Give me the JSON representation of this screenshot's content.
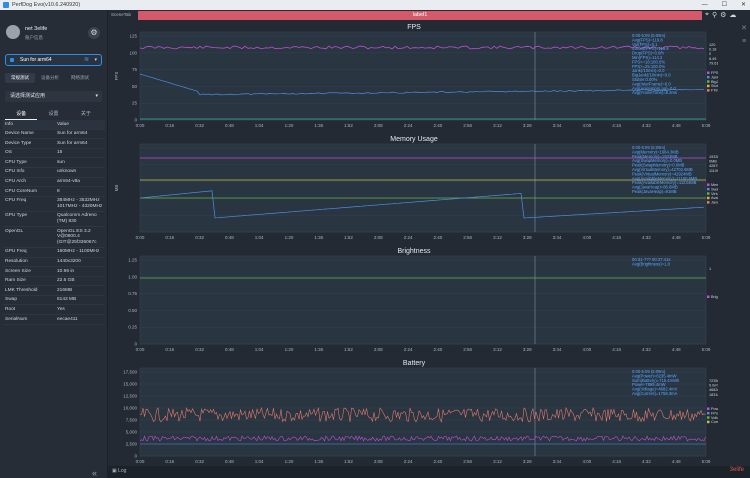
{
  "titlebar": {
    "title": "PerfDog Evo(v10.6.240920)",
    "controls": [
      "—",
      "☐",
      "✕"
    ]
  },
  "user": {
    "name": "net 3elife",
    "subtitle": "账户信息"
  },
  "device_select": {
    "label": "Sun for arm64"
  },
  "mode_tabs": [
    "常规测试",
    "设备分析",
    "网络测试"
  ],
  "app_select": {
    "placeholder": "请选择测试应用"
  },
  "info_tabs": [
    "设备",
    "设置",
    "关于"
  ],
  "info": {
    "header": [
      "Info",
      "Value"
    ],
    "rows": [
      [
        "Device Name",
        "Sun for arm64"
      ],
      [
        "Device Type",
        "Sun for arm64"
      ],
      [
        "OS",
        "15"
      ],
      [
        "CPU Type",
        "sun"
      ],
      [
        "CPU Info",
        "unknown"
      ],
      [
        "CPU Arch",
        "arm64-v8a"
      ],
      [
        "CPU CoreNum",
        "8"
      ],
      [
        "CPU Freq",
        "384MHz - 3532MHz\n1017MHz - 4320MHz"
      ],
      [
        "GPU Type",
        "Qualcomm Adreno\n(TM) 830"
      ],
      [
        "OpenGL",
        "OpenGL ES 3.2\nV@0800.4\n(GIT@25f336067c"
      ],
      [
        "GPU Freq",
        "160MHz - 1100MHz"
      ],
      [
        "Resolution",
        "1440x3200"
      ],
      [
        "Screen Size",
        "10.96 in"
      ],
      [
        "Ram Size",
        "22.6 GB"
      ],
      [
        "LMK Threshold",
        "216MB"
      ],
      [
        "Swap",
        "6143 MB"
      ],
      [
        "Root",
        "Yes"
      ],
      [
        "SerialNum",
        "eecae411"
      ]
    ]
  },
  "main": {
    "scene_tab": "SceneTab",
    "label_bar": "label1",
    "bottom": {
      "log": "Log",
      "watermark": "3elife"
    }
  },
  "time_ticks": [
    "0:00",
    "0:16",
    "0:32",
    "0:48",
    "1:04",
    "1:20",
    "1:36",
    "1:52",
    "2:08",
    "2:24",
    "2:40",
    "2:56",
    "3:12",
    "3:28",
    "3:44",
    "4:00",
    "4:16",
    "4:32",
    "4:48",
    "5:09"
  ],
  "panels": [
    {
      "title": "FPS",
      "ylabel": "FPS",
      "yticks": [
        "125",
        "100",
        "75",
        "50",
        "25",
        "0"
      ],
      "annotation": [
        "0:00-5:09 (5:09m)",
        "Avg(FPS)=119.8",
        "Var(FPS)=0.1",
        "SmoothFPS)=119.9",
        "Drop(FPS)=0.0/h",
        "Min(FPS)=114.2",
        "FPS>=18:100.0%",
        "FPS>=25:100.0%",
        "Jank(/10min)=0.0",
        "BigJank(/10min)=0.0",
        "Stutter:0.00%",
        "Avg(InterFrame)=0.0",
        "Avg(AnimationLag)=0.0",
        "Avg(FrameTime)=8.3ms"
      ],
      "side_values": [
        "120",
        "0.18",
        "0",
        "8.49",
        "79.61"
      ],
      "legend": [
        "FPS",
        "Jank(/10min)",
        "BigJank(/10min)",
        "Stutter(%)",
        "FTime(>=100)"
      ]
    },
    {
      "title": "Memory Usage",
      "ylabel": "MB",
      "yticks": [
        "",
        "",
        "",
        "",
        "",
        ""
      ],
      "annotation": [
        "0:00-5:09 (5:09m)",
        "Avg(Memory)=1664.3MB",
        "Peak(Memory)=1933MB",
        "Avg(SwapMemory)=0.0MB",
        "Peak(SwapMemory)=0.0MB",
        "Avg(VirtualMemory)=42702.6MB",
        "Peak(VirtualMemory)=42924MB",
        "Avg(AvailableMemory)=11160.6MB",
        "Peak(AvailableMemory)=11234MB",
        "Avg(JavaHeap)=86.6MB",
        "Peak(JavaHeap)=91MB"
      ],
      "side_values": [
        "1933MB",
        "0MB",
        "42879MB",
        "11109MB"
      ],
      "legend": [
        "Memory",
        "SwapMemory",
        "VirtualMemory",
        "AvailableMemory",
        "JavaHeap"
      ]
    },
    {
      "title": "Brightness",
      "ylabel": "",
      "yticks": [
        "1.25",
        "1.00",
        "0.75",
        "0.50",
        "0.25",
        "0"
      ],
      "annotation": [
        "00:31-??? 00:37:41s",
        "Avg(Brightness)=1.0"
      ],
      "side_values": [
        "1"
      ],
      "legend": [
        "Brightness"
      ]
    },
    {
      "title": "Battery",
      "ylabel": "",
      "yticks": [
        "17,500",
        "15,000",
        "12,500",
        "10,000",
        "7,500",
        "5,000",
        "2,500",
        "0"
      ],
      "annotation": [
        "0:00-5:09 (5:09m)",
        "Avg(Power)=8235.4mW",
        "Sum(Battery)=715.4mWh",
        "Power-7899.4mW",
        "Avg(Voltage)=4682.4mV",
        "Avg(Current)=1758.3mA"
      ],
      "side_values": [
        "7235mW",
        "0.0mWh",
        "4682mV",
        "1831mA"
      ],
      "legend": [
        "Power",
        "FPower",
        "Voltage",
        "Current"
      ]
    }
  ]
}
